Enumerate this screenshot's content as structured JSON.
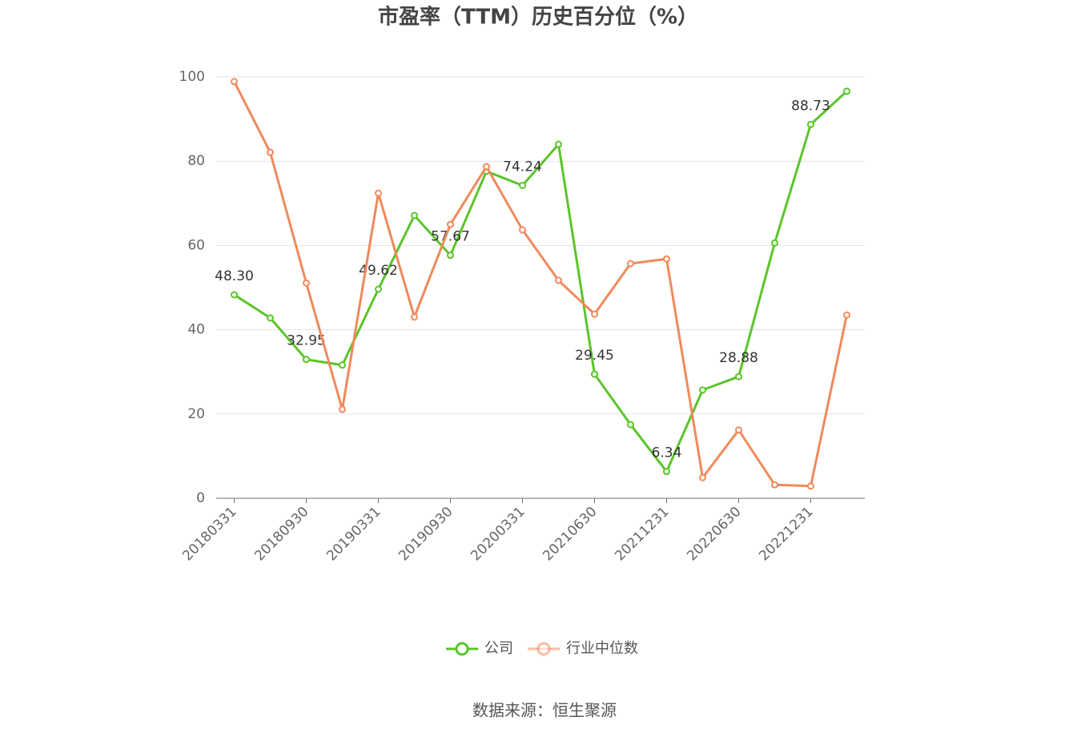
{
  "chart_data": {
    "type": "line",
    "title": "市盈率（TTM）历史百分位（%）",
    "source": "数据来源：恒生聚源",
    "categories": [
      "20180331",
      null,
      "20180930",
      null,
      "20190331",
      null,
      "20190930",
      null,
      "20200331",
      null,
      "20210630",
      null,
      "20211231",
      null,
      "20220630",
      null,
      "20221231",
      null
    ],
    "series": [
      {
        "name": "公司",
        "color": "#5bc52a",
        "values": [
          48.3,
          42.8,
          32.95,
          31.6,
          49.62,
          67.1,
          57.67,
          77.6,
          74.24,
          84.0,
          29.45,
          17.5,
          6.34,
          25.7,
          28.88,
          60.6,
          88.73,
          96.6
        ],
        "value_labels": [
          "48.30",
          null,
          "32.95",
          null,
          "49.62",
          null,
          "57.67",
          null,
          "74.24",
          null,
          "29.45",
          null,
          "6.34",
          null,
          "28.88",
          null,
          "88.73",
          null
        ]
      },
      {
        "name": "行业中位数",
        "color": "#f08a5d",
        "values": [
          98.9,
          82.1,
          51.1,
          21.1,
          72.4,
          43.0,
          65.0,
          78.7,
          63.7,
          51.7,
          43.7,
          55.7,
          56.8,
          4.9,
          16.2,
          3.2,
          2.9,
          43.5
        ]
      }
    ],
    "ylim": [
      0,
      100
    ],
    "yticks": [
      0,
      20,
      40,
      60,
      80,
      100
    ],
    "grid": true,
    "legend": "bottom"
  }
}
